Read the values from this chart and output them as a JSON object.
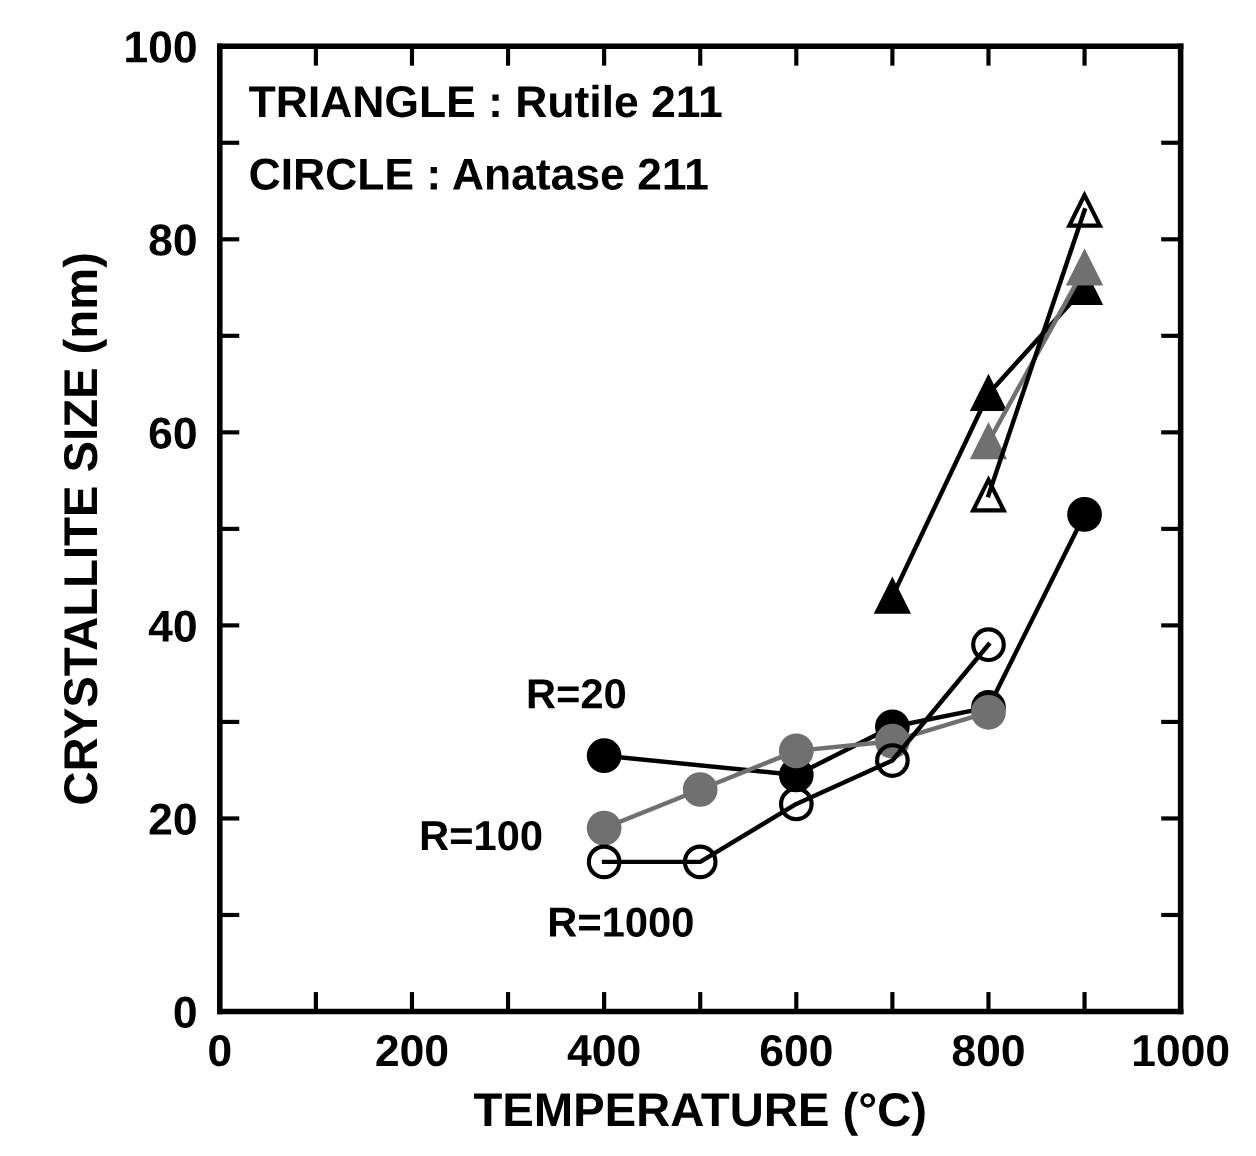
{
  "chart_data": {
    "type": "line",
    "xlabel": "TEMPERATURE (°C)",
    "ylabel": "CRYSTALLITE SIZE (nm)",
    "xlim": [
      0,
      1000
    ],
    "ylim": [
      0,
      100
    ],
    "xticks": [
      0,
      {
        "value": 100,
        "label": null
      },
      200,
      {
        "value": 300,
        "label": null
      },
      400,
      {
        "value": 500,
        "label": null
      },
      600,
      {
        "value": 700,
        "label": null
      },
      800,
      {
        "value": 900,
        "label": null
      },
      1000
    ],
    "yticks": [
      0,
      {
        "value": 10,
        "label": null
      },
      20,
      {
        "value": 30,
        "label": null
      },
      40,
      {
        "value": 50,
        "label": null
      },
      60,
      {
        "value": 70,
        "label": null
      },
      80,
      {
        "value": 90,
        "label": null
      },
      100
    ],
    "grid": false,
    "annotations": [
      "TRIANGLE : Rutile 211",
      "CIRCLE : Anatase 211"
    ],
    "series": [
      {
        "name": "R=20",
        "color": "#000000",
        "marker": "circle",
        "x": [
          400,
          600,
          700,
          800,
          900
        ],
        "values": [
          26.5,
          24.5,
          29.5,
          31.5,
          51.5
        ]
      },
      {
        "name": "R=100",
        "color": "#707070",
        "marker": "circle",
        "x": [
          400,
          500,
          600,
          700,
          800
        ],
        "values": [
          19,
          23,
          27,
          28,
          31
        ]
      },
      {
        "name": "R=1000",
        "color": "#000000",
        "marker": "circle",
        "x": [
          400,
          500,
          600,
          700,
          800
        ],
        "values": [
          15.5,
          15.5,
          21.5,
          26,
          38
        ]
      },
      {
        "color": "#000000",
        "marker": "triangle",
        "x": [
          700,
          800,
          900
        ],
        "values": [
          43,
          64,
          75
        ]
      },
      {
        "color": "#707070",
        "marker": "triangle",
        "x": [
          800,
          900
        ],
        "values": [
          59,
          77
        ]
      },
      {
        "color": "#000000",
        "marker": "triangle",
        "x": [
          800,
          900
        ],
        "values": [
          53.5,
          83
        ]
      }
    ]
  }
}
